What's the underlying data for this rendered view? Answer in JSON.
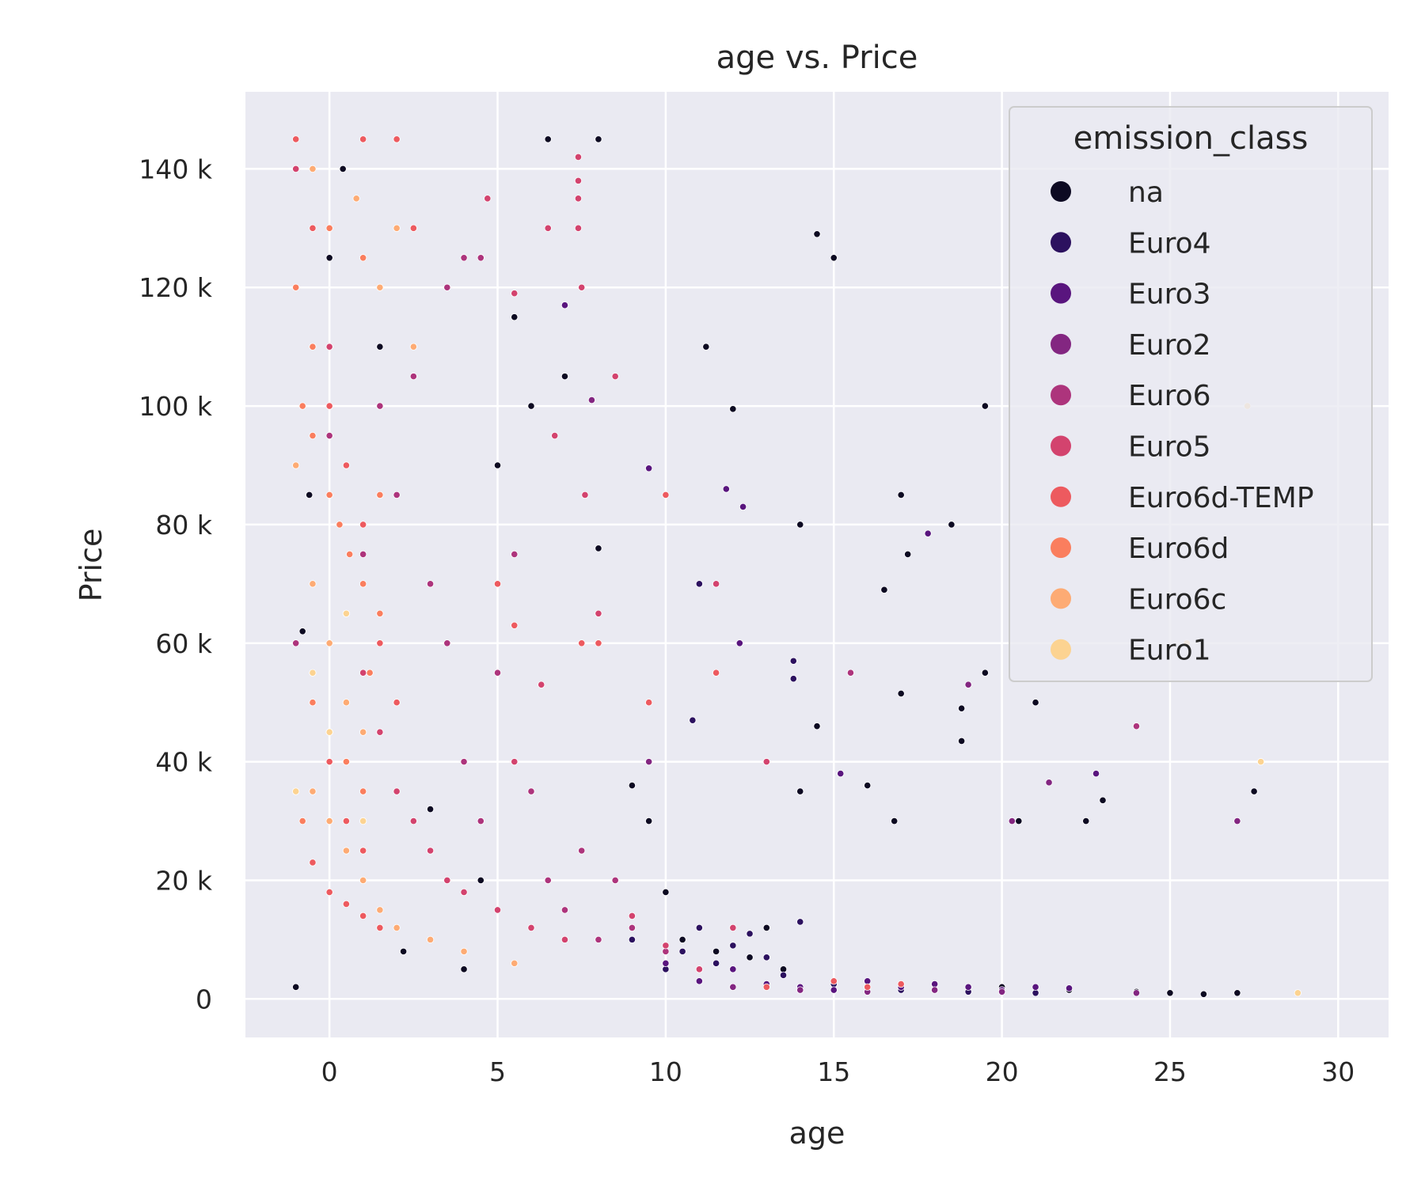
{
  "chart_data": {
    "type": "scatter",
    "title": "age vs. Price",
    "xlabel": "age",
    "ylabel": "Price",
    "xlim": [
      -2.5,
      31.5
    ],
    "ylim": [
      -6500,
      153000
    ],
    "xticks": [
      0,
      5,
      10,
      15,
      20,
      25,
      30
    ],
    "xtick_labels": [
      "0",
      "5",
      "10",
      "15",
      "20",
      "25",
      "30"
    ],
    "yticks": [
      0,
      20000,
      40000,
      60000,
      80000,
      100000,
      120000,
      140000
    ],
    "ytick_labels": [
      "0",
      "20 k",
      "40 k",
      "60 k",
      "80 k",
      "100 k",
      "120 k",
      "140 k"
    ],
    "grid": true,
    "background": "#eaeaf2",
    "legend": {
      "title": "emission_class",
      "placement": "top-right"
    },
    "series": [
      {
        "name": "na",
        "color": "#0d0a22",
        "points": [
          [
            -1.0,
            2000
          ],
          [
            -0.8,
            62000
          ],
          [
            -0.6,
            85000
          ],
          [
            0.0,
            125000
          ],
          [
            0.4,
            140000
          ],
          [
            1.5,
            110000
          ],
          [
            2.0,
            50000
          ],
          [
            2.2,
            8000
          ],
          [
            3.0,
            32000
          ],
          [
            4.0,
            5000
          ],
          [
            4.5,
            20000
          ],
          [
            5.0,
            90000
          ],
          [
            5.5,
            115000
          ],
          [
            6.0,
            100000
          ],
          [
            6.5,
            145000
          ],
          [
            7.0,
            105000
          ],
          [
            8.0,
            145000
          ],
          [
            8.0,
            76000
          ],
          [
            9.0,
            36000
          ],
          [
            9.5,
            30000
          ],
          [
            10.0,
            18000
          ],
          [
            10.5,
            10000
          ],
          [
            11.0,
            5000
          ],
          [
            11.2,
            110000
          ],
          [
            11.5,
            8000
          ],
          [
            12.0,
            99500
          ],
          [
            12.5,
            7000
          ],
          [
            13.0,
            12000
          ],
          [
            13.5,
            5000
          ],
          [
            14.0,
            80000
          ],
          [
            14.0,
            35000
          ],
          [
            14.5,
            129000
          ],
          [
            15.0,
            125000
          ],
          [
            14.5,
            46000
          ],
          [
            16.0,
            36000
          ],
          [
            16.5,
            69000
          ],
          [
            17.0,
            85000
          ],
          [
            17.2,
            75000
          ],
          [
            16.8,
            30000
          ],
          [
            17.0,
            51500
          ],
          [
            18.5,
            80000
          ],
          [
            18.8,
            49000
          ],
          [
            18.8,
            43500
          ],
          [
            19.5,
            100000
          ],
          [
            19.5,
            55000
          ],
          [
            20.0,
            2000
          ],
          [
            20.5,
            30000
          ],
          [
            21.0,
            50000
          ],
          [
            22.0,
            1500
          ],
          [
            22.5,
            30000
          ],
          [
            23.0,
            33500
          ],
          [
            24.0,
            1200
          ],
          [
            25.0,
            1000
          ],
          [
            26.0,
            800
          ],
          [
            27.0,
            1000
          ],
          [
            27.5,
            35000
          ]
        ]
      },
      {
        "name": "Euro4",
        "color": "#2c115f",
        "points": [
          [
            9.0,
            10000
          ],
          [
            10.0,
            5000
          ],
          [
            10.5,
            8000
          ],
          [
            11.0,
            12000
          ],
          [
            11.5,
            6000
          ],
          [
            12.0,
            9000
          ],
          [
            12.5,
            11000
          ],
          [
            13.0,
            7000
          ],
          [
            13.5,
            4000
          ],
          [
            13.8,
            57000
          ],
          [
            13.8,
            54000
          ],
          [
            14.0,
            13000
          ],
          [
            15.0,
            2500
          ],
          [
            16.0,
            2000
          ],
          [
            17.0,
            1500
          ],
          [
            18.0,
            2500
          ],
          [
            19.0,
            1200
          ],
          [
            20.0,
            1500
          ],
          [
            21.0,
            1000
          ],
          [
            11.0,
            70000
          ],
          [
            10.8,
            47000
          ]
        ]
      },
      {
        "name": "Euro3",
        "color": "#59157e",
        "points": [
          [
            10.0,
            6000
          ],
          [
            11.0,
            3000
          ],
          [
            12.0,
            5000
          ],
          [
            13.0,
            2500
          ],
          [
            14.0,
            2000
          ],
          [
            15.0,
            1500
          ],
          [
            15.2,
            38000
          ],
          [
            16.0,
            3000
          ],
          [
            17.0,
            2000
          ],
          [
            17.8,
            78500
          ],
          [
            18.0,
            2500
          ],
          [
            19.0,
            2000
          ],
          [
            20.0,
            1500
          ],
          [
            21.0,
            2000
          ],
          [
            22.0,
            1800
          ],
          [
            22.8,
            38000
          ],
          [
            7.0,
            117000
          ],
          [
            9.5,
            89500
          ],
          [
            11.8,
            86000
          ],
          [
            12.3,
            83000
          ],
          [
            12.2,
            60000
          ]
        ]
      },
      {
        "name": "Euro2",
        "color": "#832681",
        "points": [
          [
            12.0,
            2000
          ],
          [
            14.0,
            1500
          ],
          [
            16.0,
            1200
          ],
          [
            18.0,
            1500
          ],
          [
            19.0,
            53000
          ],
          [
            20.0,
            1200
          ],
          [
            20.3,
            30000
          ],
          [
            21.4,
            36500
          ],
          [
            24.0,
            1000
          ],
          [
            27.0,
            30000
          ],
          [
            7.8,
            101000
          ],
          [
            9.5,
            40000
          ]
        ]
      },
      {
        "name": "Euro6",
        "color": "#ad347c",
        "points": [
          [
            -1.0,
            60000
          ],
          [
            0.0,
            95000
          ],
          [
            1.0,
            75000
          ],
          [
            1.5,
            100000
          ],
          [
            2.0,
            85000
          ],
          [
            2.5,
            105000
          ],
          [
            3.0,
            70000
          ],
          [
            3.5,
            60000
          ],
          [
            4.0,
            40000
          ],
          [
            4.5,
            30000
          ],
          [
            5.0,
            55000
          ],
          [
            5.5,
            75000
          ],
          [
            6.0,
            35000
          ],
          [
            6.5,
            20000
          ],
          [
            7.0,
            15000
          ],
          [
            7.5,
            25000
          ],
          [
            8.0,
            10000
          ],
          [
            8.5,
            20000
          ],
          [
            9.0,
            12000
          ],
          [
            10.0,
            8000
          ],
          [
            4.0,
            125000
          ],
          [
            4.5,
            125000
          ],
          [
            3.5,
            120000
          ],
          [
            15.5,
            55000
          ],
          [
            24.0,
            46000
          ],
          [
            2.0,
            145000
          ]
        ]
      },
      {
        "name": "Euro5",
        "color": "#d3436e",
        "points": [
          [
            -1.0,
            140000
          ],
          [
            0.0,
            110000
          ],
          [
            0.5,
            65000
          ],
          [
            1.0,
            55000
          ],
          [
            1.5,
            45000
          ],
          [
            2.0,
            35000
          ],
          [
            2.5,
            30000
          ],
          [
            3.0,
            25000
          ],
          [
            3.5,
            20000
          ],
          [
            4.0,
            18000
          ],
          [
            5.0,
            15000
          ],
          [
            5.5,
            40000
          ],
          [
            6.0,
            12000
          ],
          [
            6.5,
            130000
          ],
          [
            7.0,
            10000
          ],
          [
            7.4,
            142000
          ],
          [
            7.4,
            138000
          ],
          [
            7.4,
            135000
          ],
          [
            7.4,
            130000
          ],
          [
            7.5,
            120000
          ],
          [
            8.0,
            65000
          ],
          [
            8.5,
            105000
          ],
          [
            9.0,
            14000
          ],
          [
            10.0,
            9000
          ],
          [
            11.0,
            5000
          ],
          [
            11.5,
            70000
          ],
          [
            13.0,
            40000
          ],
          [
            12.0,
            12000
          ],
          [
            5.5,
            119000
          ],
          [
            4.7,
            135000
          ],
          [
            6.7,
            95000
          ],
          [
            7.6,
            85000
          ],
          [
            6.3,
            53000
          ]
        ]
      },
      {
        "name": "Euro6d-TEMP",
        "color": "#ed5a5f",
        "points": [
          [
            -1.0,
            145000
          ],
          [
            -0.5,
            130000
          ],
          [
            0.0,
            100000
          ],
          [
            0.5,
            90000
          ],
          [
            1.0,
            80000
          ],
          [
            1.5,
            60000
          ],
          [
            2.0,
            50000
          ],
          [
            0.0,
            40000
          ],
          [
            0.5,
            30000
          ],
          [
            1.0,
            25000
          ],
          [
            -0.5,
            23000
          ],
          [
            0.0,
            18000
          ],
          [
            0.5,
            16000
          ],
          [
            1.0,
            14000
          ],
          [
            1.5,
            12000
          ],
          [
            2.0,
            145000
          ],
          [
            1.0,
            145000
          ],
          [
            2.5,
            130000
          ],
          [
            7.5,
            60000
          ],
          [
            8.0,
            60000
          ],
          [
            10.0,
            85000
          ],
          [
            9.5,
            50000
          ],
          [
            11.5,
            55000
          ],
          [
            13.0,
            2000
          ],
          [
            15.0,
            3000
          ],
          [
            16.0,
            2000
          ],
          [
            17.0,
            2500
          ],
          [
            5.0,
            70000
          ],
          [
            5.5,
            63000
          ]
        ]
      },
      {
        "name": "Euro6d",
        "color": "#fa7e5e",
        "points": [
          [
            -1.0,
            120000
          ],
          [
            -0.8,
            100000
          ],
          [
            -0.5,
            95000
          ],
          [
            0.0,
            85000
          ],
          [
            0.3,
            80000
          ],
          [
            0.6,
            75000
          ],
          [
            1.0,
            70000
          ],
          [
            1.2,
            55000
          ],
          [
            -0.5,
            50000
          ],
          [
            0.0,
            45000
          ],
          [
            0.5,
            40000
          ],
          [
            1.0,
            35000
          ],
          [
            -0.8,
            30000
          ],
          [
            1.5,
            85000
          ],
          [
            1.5,
            65000
          ],
          [
            0.0,
            130000
          ],
          [
            1.0,
            125000
          ],
          [
            -0.5,
            110000
          ],
          [
            2.0,
            130000
          ]
        ]
      },
      {
        "name": "Euro6c",
        "color": "#fdab74",
        "points": [
          [
            -1.0,
            90000
          ],
          [
            -0.5,
            70000
          ],
          [
            0.0,
            60000
          ],
          [
            0.5,
            50000
          ],
          [
            1.0,
            45000
          ],
          [
            -0.5,
            35000
          ],
          [
            0.0,
            30000
          ],
          [
            0.5,
            25000
          ],
          [
            1.0,
            20000
          ],
          [
            1.5,
            15000
          ],
          [
            2.0,
            12000
          ],
          [
            3.0,
            10000
          ],
          [
            4.0,
            8000
          ],
          [
            5.5,
            6000
          ],
          [
            2.5,
            110000
          ],
          [
            1.5,
            120000
          ],
          [
            0.8,
            135000
          ],
          [
            2.0,
            130000
          ],
          [
            -0.5,
            140000
          ]
        ]
      },
      {
        "name": "Euro1",
        "color": "#fcd391",
        "points": [
          [
            -1.0,
            35000
          ],
          [
            0.0,
            45000
          ],
          [
            1.0,
            30000
          ],
          [
            -0.5,
            55000
          ],
          [
            0.5,
            65000
          ],
          [
            27.3,
            100000
          ],
          [
            27.7,
            40000
          ],
          [
            28.8,
            1000
          ],
          [
            25.5,
            60000
          ]
        ]
      }
    ]
  }
}
